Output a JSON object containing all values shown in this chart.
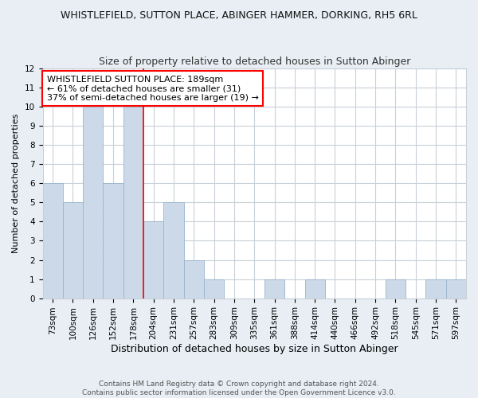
{
  "title": "WHISTLEFIELD, SUTTON PLACE, ABINGER HAMMER, DORKING, RH5 6RL",
  "subtitle": "Size of property relative to detached houses in Sutton Abinger",
  "xlabel": "Distribution of detached houses by size in Sutton Abinger",
  "ylabel": "Number of detached properties",
  "categories": [
    "73sqm",
    "100sqm",
    "126sqm",
    "152sqm",
    "178sqm",
    "204sqm",
    "231sqm",
    "257sqm",
    "283sqm",
    "309sqm",
    "335sqm",
    "361sqm",
    "388sqm",
    "414sqm",
    "440sqm",
    "466sqm",
    "492sqm",
    "518sqm",
    "545sqm",
    "571sqm",
    "597sqm"
  ],
  "values": [
    6,
    5,
    10,
    6,
    10,
    4,
    5,
    2,
    1,
    0,
    0,
    1,
    0,
    1,
    0,
    0,
    0,
    1,
    0,
    1,
    1
  ],
  "bar_color": "#ccd9e8",
  "bar_edge_color": "#9ab4cc",
  "red_line_x": 4.5,
  "annotation_title": "WHISTLEFIELD SUTTON PLACE: 189sqm",
  "annotation_line2": "← 61% of detached houses are smaller (31)",
  "annotation_line3": "37% of semi-detached houses are larger (19) →",
  "ylim": [
    0,
    12
  ],
  "yticks": [
    0,
    1,
    2,
    3,
    4,
    5,
    6,
    7,
    8,
    9,
    10,
    11,
    12
  ],
  "footer1": "Contains HM Land Registry data © Crown copyright and database right 2024.",
  "footer2": "Contains public sector information licensed under the Open Government Licence v3.0.",
  "background_color": "#e8eef4",
  "plot_bg_color": "#ffffff",
  "grid_color": "#c8d0d8",
  "title_fontsize": 9,
  "subtitle_fontsize": 9,
  "xlabel_fontsize": 9,
  "ylabel_fontsize": 8,
  "tick_fontsize": 7.5,
  "annotation_fontsize": 8,
  "footer_fontsize": 6.5
}
